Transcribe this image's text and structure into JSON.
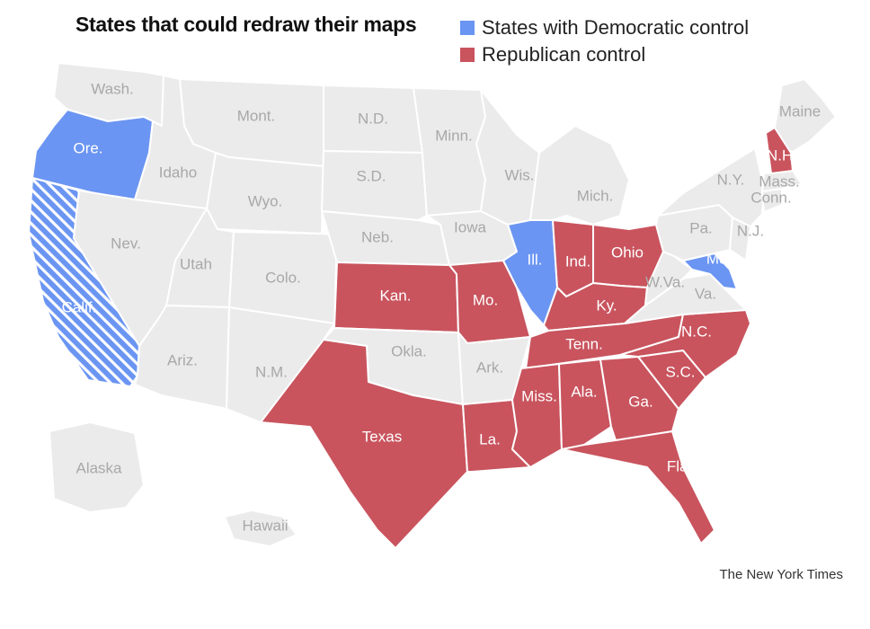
{
  "title": "States that could redraw their maps",
  "legend": {
    "democratic": {
      "label": "States with Democratic control",
      "color": "#6b95f2"
    },
    "republican": {
      "label": "Republican control",
      "color": "#c9545e"
    }
  },
  "neutral_color": "#ebebeb",
  "credit": "The New York Times",
  "states": [
    {
      "name": "Wash.",
      "control": "none"
    },
    {
      "name": "Ore.",
      "control": "democratic"
    },
    {
      "name": "Calif.",
      "control": "democratic",
      "hatched": true
    },
    {
      "name": "Idaho",
      "control": "none"
    },
    {
      "name": "Nev.",
      "control": "none"
    },
    {
      "name": "Mont.",
      "control": "none"
    },
    {
      "name": "Wyo.",
      "control": "none"
    },
    {
      "name": "Utah",
      "control": "none"
    },
    {
      "name": "Colo.",
      "control": "none"
    },
    {
      "name": "Ariz.",
      "control": "none"
    },
    {
      "name": "N.M.",
      "control": "none"
    },
    {
      "name": "N.D.",
      "control": "none"
    },
    {
      "name": "S.D.",
      "control": "none"
    },
    {
      "name": "Neb.",
      "control": "none"
    },
    {
      "name": "Kan.",
      "control": "republican"
    },
    {
      "name": "Okla.",
      "control": "none"
    },
    {
      "name": "Texas",
      "control": "republican"
    },
    {
      "name": "Minn.",
      "control": "none"
    },
    {
      "name": "Iowa",
      "control": "none"
    },
    {
      "name": "Mo.",
      "control": "republican"
    },
    {
      "name": "Ark.",
      "control": "none"
    },
    {
      "name": "La.",
      "control": "republican"
    },
    {
      "name": "Wis.",
      "control": "none"
    },
    {
      "name": "Ill.",
      "control": "democratic"
    },
    {
      "name": "Mich.",
      "control": "none"
    },
    {
      "name": "Ind.",
      "control": "republican"
    },
    {
      "name": "Ohio",
      "control": "republican"
    },
    {
      "name": "Ky.",
      "control": "republican"
    },
    {
      "name": "Tenn.",
      "control": "republican"
    },
    {
      "name": "Miss.",
      "control": "republican"
    },
    {
      "name": "Ala.",
      "control": "republican"
    },
    {
      "name": "Ga.",
      "control": "republican"
    },
    {
      "name": "Fla.",
      "control": "republican"
    },
    {
      "name": "S.C.",
      "control": "republican"
    },
    {
      "name": "N.C.",
      "control": "republican"
    },
    {
      "name": "Va.",
      "control": "none"
    },
    {
      "name": "W.Va.",
      "control": "none"
    },
    {
      "name": "Md.",
      "control": "democratic"
    },
    {
      "name": "Pa.",
      "control": "none"
    },
    {
      "name": "N.J.",
      "control": "none"
    },
    {
      "name": "N.Y.",
      "control": "none"
    },
    {
      "name": "Conn.",
      "control": "none"
    },
    {
      "name": "Mass.",
      "control": "none"
    },
    {
      "name": "N.H.",
      "control": "republican"
    },
    {
      "name": "Maine",
      "control": "none"
    },
    {
      "name": "Alaska",
      "control": "none"
    },
    {
      "name": "Hawaii",
      "control": "none"
    }
  ]
}
